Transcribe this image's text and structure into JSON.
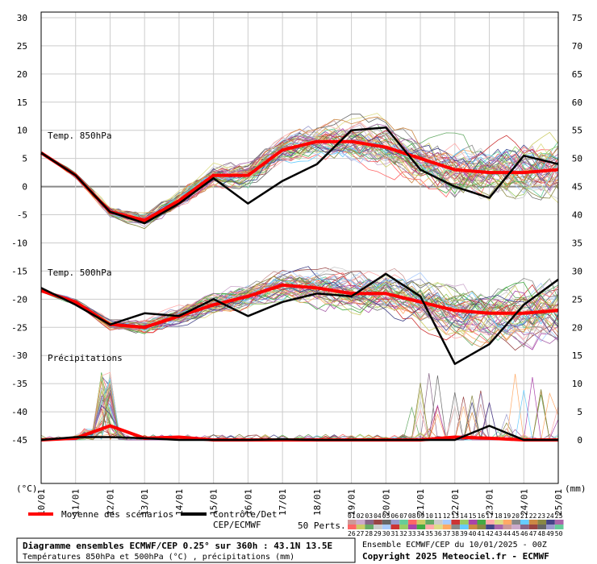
{
  "chart_data": {
    "type": "line",
    "x": [
      "10/01",
      "11/01",
      "12/01",
      "13/01",
      "14/01",
      "15/01",
      "16/01",
      "17/01",
      "18/01",
      "19/01",
      "20/01",
      "21/01",
      "22/01",
      "23/01",
      "24/01",
      "25/01"
    ],
    "y_left_ticks": [
      30,
      25,
      20,
      15,
      10,
      5,
      0,
      -5,
      -10,
      -15,
      -20,
      -25,
      -30,
      -35,
      -40,
      -45
    ],
    "y_right_ticks": [
      75,
      70,
      65,
      60,
      55,
      50,
      45,
      40,
      35,
      30,
      25,
      20,
      15,
      10,
      5,
      0
    ],
    "left_unit": "(°C)",
    "right_unit": "(mm)",
    "ylim_left": [
      -45,
      30
    ],
    "panel_labels": [
      "Temp. 850hPa",
      "Temp. 500hPa",
      "Précipitations"
    ],
    "series": [
      {
        "name": "Moyenne des scénarios",
        "color": "#ff0000",
        "panel": "t850",
        "values": [
          6,
          2,
          -4.5,
          -6,
          -2.5,
          2,
          2,
          6.5,
          8,
          8,
          7,
          5,
          3,
          2.5,
          2.5,
          3
        ]
      },
      {
        "name": "Contrôle/Det CEP/ECMWF",
        "color": "#000000",
        "panel": "t850",
        "values": [
          6,
          2,
          -4.5,
          -6.5,
          -3,
          1.5,
          -3,
          1,
          4,
          10,
          10.5,
          3,
          0,
          -2,
          5.5,
          4
        ]
      },
      {
        "name": "Moyenne des scénarios",
        "color": "#ff0000",
        "panel": "t500",
        "values": [
          -18.5,
          -20.5,
          -24.5,
          -25,
          -23,
          -21,
          -19.5,
          -17.5,
          -18,
          -19,
          -19,
          -20.5,
          -22,
          -22.5,
          -22.5,
          -22
        ]
      },
      {
        "name": "Contrôle/Det CEP/ECMWF",
        "color": "#000000",
        "panel": "t500",
        "values": [
          -18,
          -21,
          -24.5,
          -22.5,
          -23,
          -20,
          -23,
          -20.5,
          -19,
          -19.5,
          -15.5,
          -19.5,
          -31.5,
          -28,
          -21,
          -16.5
        ]
      },
      {
        "name": "Moyenne des scénarios",
        "color": "#ff0000",
        "panel": "precip",
        "values": [
          0,
          0.3,
          2.5,
          0.3,
          0.5,
          0,
          0,
          0,
          0,
          0,
          0,
          0,
          0.5,
          0.3,
          0,
          0
        ]
      },
      {
        "name": "Contrôle/Det CEP/ECMWF",
        "color": "#000000",
        "panel": "precip",
        "values": [
          0,
          0.5,
          0.5,
          0.3,
          0,
          0,
          0,
          0.1,
          0,
          0,
          0,
          0,
          0,
          2.5,
          0,
          0
        ]
      }
    ],
    "members_start": [
      "01",
      "02",
      "03",
      "04",
      "05",
      "06",
      "07",
      "08",
      "09",
      "10",
      "11",
      "12",
      "13",
      "14",
      "15",
      "16",
      "17",
      "18",
      "19",
      "20",
      "21",
      "22",
      "23",
      "24",
      "25"
    ],
    "members_end": [
      "26",
      "27",
      "28",
      "29",
      "30",
      "31",
      "32",
      "33",
      "34",
      "35",
      "36",
      "37",
      "38",
      "39",
      "40",
      "41",
      "42",
      "43",
      "44",
      "45",
      "46",
      "47",
      "48",
      "49",
      "50"
    ],
    "member_colors": [
      "#cc9999",
      "#ccaacc",
      "#886688",
      "#994444",
      "#666666",
      "#9999cc",
      "#66cc99",
      "#ff6666",
      "#cccc66",
      "#66aa66",
      "#cccccc",
      "#aaccff",
      "#cc3333",
      "#99cc66",
      "#aa44aa",
      "#44aa44",
      "#ffaaaa",
      "#dddd88",
      "#ffaa66",
      "#888888",
      "#66ccff",
      "#cc8844",
      "#888844",
      "#444488",
      "#aa66aa"
    ],
    "legend_mean": "Moyenne des scénarios",
    "legend_ctrl_1": "Contrôle/Det",
    "legend_ctrl_2": "CEP/ECMWF",
    "legend_perts": "50 Perts.",
    "title_1": "Diagramme ensembles ECMWF/CEP 0.25° sur 360h : 43.1N 13.5E",
    "title_2": "Températures 850hPa et 500hPa (°C) , précipitations (mm)",
    "info_1": "Ensemble ECMWF/CEP du 10/01/2025 - 00Z",
    "info_2": "Copyright 2025 Meteociel.fr - ECMWF"
  }
}
